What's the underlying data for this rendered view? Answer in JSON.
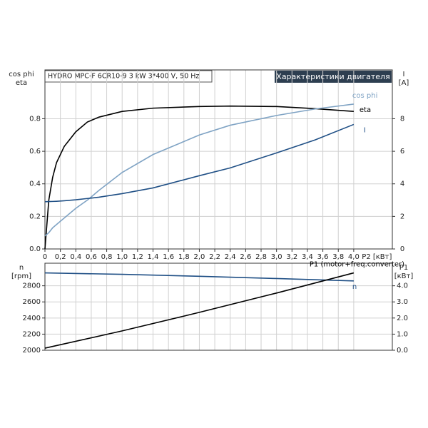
{
  "header": {
    "title": "HYDRO MPC-F 6CR10-9   3 kW   3*400 V, 50 Hz",
    "badge": "Характеристики двигателя"
  },
  "chart_data": [
    {
      "type": "line",
      "y_label": [
        "cos phi",
        "eta"
      ],
      "y2_label": [
        "I",
        "[A]"
      ],
      "x_label": "P2 [кВт]",
      "x": [
        0,
        0.05,
        0.1,
        0.15,
        0.25,
        0.4,
        0.55,
        0.7,
        1.0,
        1.4,
        2.0,
        2.4,
        3.0,
        3.5,
        4.0
      ],
      "xlim": [
        0,
        4.5
      ],
      "xticks": [
        0,
        {
          "value": 0.2,
          "label": "0,2"
        },
        {
          "value": 0.4,
          "label": "0,4"
        },
        {
          "value": 0.6,
          "label": "0,6"
        },
        {
          "value": 0.8,
          "label": "0,8"
        },
        {
          "value": 1.0,
          "label": "1,0"
        },
        {
          "value": 1.2,
          "label": "1,2"
        },
        {
          "value": 1.4,
          "label": "1,4"
        },
        {
          "value": 1.6,
          "label": "1,6"
        },
        {
          "value": 1.8,
          "label": "1,8"
        },
        {
          "value": 2.0,
          "label": "2,0"
        },
        {
          "value": 2.2,
          "label": "2,2"
        },
        {
          "value": 2.4,
          "label": "2,4"
        },
        {
          "value": 2.6,
          "label": "2,6"
        },
        {
          "value": 2.8,
          "label": "2,8"
        },
        {
          "value": 3.0,
          "label": "3,0"
        },
        {
          "value": 3.2,
          "label": "3,2"
        },
        {
          "value": 3.4,
          "label": "3,4"
        },
        {
          "value": 3.6,
          "label": "3,6"
        },
        {
          "value": 3.8,
          "label": "3,8"
        },
        {
          "value": 4.0,
          "label": "4,0"
        }
      ],
      "ylim": [
        0,
        1.1
      ],
      "yticks": [
        {
          "value": 0,
          "label": "0.0"
        },
        {
          "value": 0.2,
          "label": "0.2"
        },
        {
          "value": 0.4,
          "label": "0.4"
        },
        {
          "value": 0.6,
          "label": "0.6"
        },
        {
          "value": 0.8,
          "label": "0.8"
        }
      ],
      "y2lim": [
        0,
        11
      ],
      "y2ticks": [
        0,
        2,
        4,
        6,
        8
      ],
      "grid": true,
      "series": [
        {
          "name": "eta",
          "color": "#000000",
          "values": [
            0,
            0.3,
            0.44,
            0.53,
            0.63,
            0.72,
            0.78,
            0.81,
            0.845,
            0.865,
            0.875,
            0.878,
            0.875,
            0.862,
            0.845
          ]
        },
        {
          "name": "cos phi",
          "color": "#7fa3c4",
          "values": [
            0.08,
            0.1,
            0.13,
            0.15,
            0.19,
            0.25,
            0.3,
            0.36,
            0.47,
            0.58,
            0.7,
            0.76,
            0.82,
            0.86,
            0.89
          ]
        },
        {
          "name": "I",
          "color": "#1f4f85",
          "axis": "y2",
          "values": [
            2.9,
            2.91,
            2.92,
            2.93,
            2.96,
            3.02,
            3.1,
            3.18,
            3.4,
            3.75,
            4.5,
            4.98,
            5.9,
            6.7,
            7.65
          ]
        }
      ]
    },
    {
      "type": "line",
      "y_label": [
        "n",
        "[rpm]"
      ],
      "y2_label": [
        "P1",
        "[кВт]"
      ],
      "x": [
        0,
        1.0,
        2.0,
        3.0,
        4.0
      ],
      "xlim": [
        0,
        4.5
      ],
      "ylim": [
        2000,
        3080
      ],
      "yticks": [
        2000,
        2200,
        2400,
        2600,
        2800
      ],
      "y2lim": [
        0,
        5.4
      ],
      "y2ticks": [
        {
          "value": 0,
          "label": "0.0"
        },
        {
          "value": 1,
          "label": "1.0"
        },
        {
          "value": 2,
          "label": "2.0"
        },
        {
          "value": 3,
          "label": "3.0"
        },
        {
          "value": 4,
          "label": "4.0"
        }
      ],
      "grid": true,
      "series": [
        {
          "name": "n",
          "color": "#1f4f85",
          "values": [
            2960,
            2942,
            2918,
            2890,
            2860
          ]
        },
        {
          "name": "P1 (motor+freq.converter)",
          "color": "#000000",
          "axis": "y2",
          "values": [
            0.13,
            1.2,
            2.35,
            3.55,
            4.8
          ]
        }
      ]
    }
  ]
}
